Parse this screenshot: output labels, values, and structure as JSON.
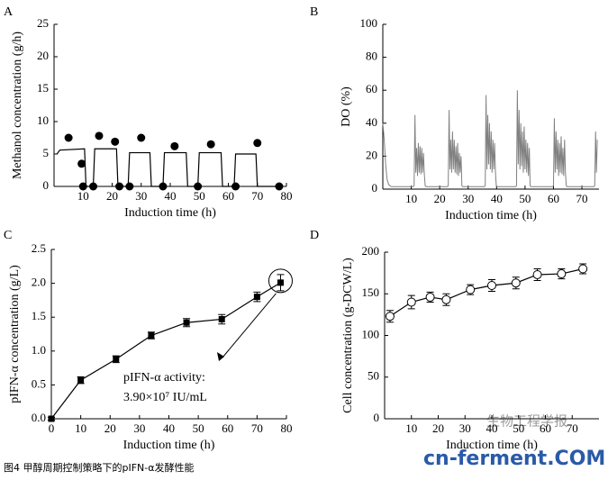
{
  "caption": "图4 甲醇周期控制策略下的pIFN-α发酵性能",
  "watermarks": [
    "生物工程学报",
    "cn-ferment.COM"
  ],
  "chart_data": [
    {
      "type": "line",
      "panel": "A",
      "xlabel": "Induction time (h)",
      "ylabel": "Methanol concentration (g/h)",
      "xlim": [
        0,
        80
      ],
      "ylim": [
        0,
        25
      ],
      "xticks": [
        10,
        20,
        30,
        40,
        50,
        60,
        70,
        80
      ],
      "yticks": [
        0,
        5,
        10,
        15,
        20,
        25
      ],
      "series": [
        {
          "style": "line",
          "color": "#000000",
          "x": [
            1,
            2,
            10.5,
            11,
            13.5,
            14,
            21.5,
            22,
            25.5,
            26,
            33,
            33.5,
            37.5,
            38,
            45.5,
            46,
            49.5,
            50,
            57.5,
            58,
            62,
            62.5,
            69.5,
            70,
            78
          ],
          "values": [
            5,
            5.6,
            5.8,
            0,
            0,
            5.8,
            5.8,
            0,
            0,
            5.2,
            5.2,
            0,
            0,
            5.2,
            5.2,
            0,
            0,
            5.2,
            5.2,
            0,
            0,
            5,
            5,
            0,
            0
          ]
        },
        {
          "style": "markers",
          "marker": "circle",
          "color": "#000000",
          "x": [
            5,
            9.5,
            10,
            13.5,
            15.5,
            21,
            22.5,
            26,
            30,
            37.5,
            41.5,
            49.5,
            54,
            62.5,
            70,
            77.5
          ],
          "values": [
            7.5,
            3.5,
            0,
            0,
            7.8,
            6.9,
            0,
            0,
            7.5,
            0,
            6.2,
            0,
            6.5,
            0,
            6.7,
            0
          ]
        }
      ]
    },
    {
      "type": "line",
      "panel": "B",
      "xlabel": "Induction time (h)",
      "ylabel": "DO (%)",
      "xlim": [
        0,
        76
      ],
      "ylim": [
        0,
        100
      ],
      "xticks": [
        10,
        20,
        30,
        40,
        50,
        60,
        70
      ],
      "yticks": [
        0,
        20,
        40,
        60,
        80,
        100
      ],
      "series": [
        {
          "style": "line",
          "color": "#808080",
          "x": [
            0,
            0.5,
            1,
            1.5,
            2,
            2.5,
            3,
            10.5,
            11,
            11.3,
            11.6,
            11.9,
            12.2,
            12.5,
            12.8,
            13.1,
            13.4,
            13.7,
            14,
            14.3,
            14.6,
            14.9,
            15.2,
            22.7,
            23,
            23.3,
            23.6,
            23.9,
            24.2,
            24.5,
            24.8,
            25.1,
            25.4,
            25.7,
            26,
            26.3,
            26.6,
            26.9,
            27.2,
            27.5,
            27.8,
            28.1,
            35.7,
            36,
            36.3,
            36.6,
            36.9,
            37.2,
            37.5,
            37.8,
            38.1,
            38.4,
            38.7,
            39,
            39.3,
            39.6,
            39.9,
            40.2,
            46.7,
            47,
            47.3,
            47.6,
            47.9,
            48.2,
            48.5,
            48.8,
            49.1,
            49.4,
            49.7,
            50,
            50.3,
            50.6,
            50.9,
            51.2,
            51.5,
            51.8,
            52.1,
            59.7,
            60,
            60.3,
            60.6,
            60.9,
            61.2,
            61.5,
            61.8,
            62.1,
            62.4,
            62.7,
            63,
            63.3,
            63.6,
            63.9,
            64.2,
            64.5,
            64.8,
            74.2,
            74.5,
            74.8,
            75.1,
            75.4
          ],
          "values": [
            40,
            30,
            15,
            6,
            3,
            2,
            1.5,
            1.5,
            2,
            45,
            10,
            25,
            8,
            28,
            10,
            26,
            9,
            25,
            10,
            22,
            9,
            2,
            1.5,
            1.5,
            2,
            48,
            12,
            30,
            10,
            35,
            12,
            30,
            10,
            26,
            9,
            28,
            8,
            22,
            10,
            20,
            2,
            1.5,
            1.5,
            2,
            57,
            12,
            45,
            15,
            40,
            12,
            35,
            10,
            30,
            12,
            28,
            10,
            2,
            1.5,
            1.5,
            2,
            60,
            15,
            48,
            12,
            40,
            14,
            35,
            10,
            38,
            12,
            30,
            10,
            28,
            8,
            25,
            2,
            1.5,
            1.5,
            2,
            43,
            10,
            35,
            12,
            30,
            8,
            28,
            10,
            32,
            9,
            25,
            8,
            30,
            10,
            2,
            1.5,
            1.5,
            2,
            35,
            10,
            30
          ]
        }
      ]
    },
    {
      "type": "line",
      "panel": "C",
      "xlabel": "Induction time (h)",
      "ylabel": "pIFN-α concentration (g/L)",
      "xlim": [
        0,
        80
      ],
      "ylim": [
        0,
        2.5
      ],
      "xticks": [
        0,
        10,
        20,
        30,
        40,
        50,
        60,
        70,
        80
      ],
      "yticks": [
        {
          "value": 0,
          "label": "0.0"
        },
        0.5,
        {
          "value": 1,
          "label": "1.0"
        },
        1.5,
        {
          "value": 2,
          "label": "2.0"
        },
        2.5
      ],
      "annotations": [
        "pIFN-α activity:",
        "3.90×10⁷ IU/mL"
      ],
      "series": [
        {
          "style": "line+markers",
          "marker": "square",
          "color": "#000000",
          "x": [
            0,
            10,
            22,
            34,
            46,
            58,
            70,
            78
          ],
          "values": [
            0,
            0.57,
            0.88,
            1.23,
            1.42,
            1.47,
            1.8,
            2.01
          ],
          "errors": [
            0.02,
            0.05,
            0.05,
            0.05,
            0.06,
            0.07,
            0.07,
            0.12
          ]
        }
      ]
    },
    {
      "type": "line",
      "panel": "D",
      "xlabel": "Induction time (h)",
      "ylabel": "Cell concentration (g-DCW/L)",
      "xlim": [
        0,
        80
      ],
      "ylim": [
        0,
        200
      ],
      "xticks": [
        10,
        20,
        30,
        40,
        50,
        60,
        70
      ],
      "yticks": [
        0,
        50,
        100,
        150,
        200
      ],
      "series": [
        {
          "style": "line+markers",
          "marker": "open-circle",
          "color": "#000000",
          "x": [
            2,
            10,
            17,
            23,
            32,
            40,
            49,
            57,
            66,
            74
          ],
          "values": [
            123,
            140,
            146,
            143,
            155,
            160,
            163,
            173,
            174,
            180
          ],
          "errors": [
            7,
            8,
            6,
            7,
            6,
            7,
            7,
            7,
            6,
            6
          ]
        }
      ]
    }
  ]
}
